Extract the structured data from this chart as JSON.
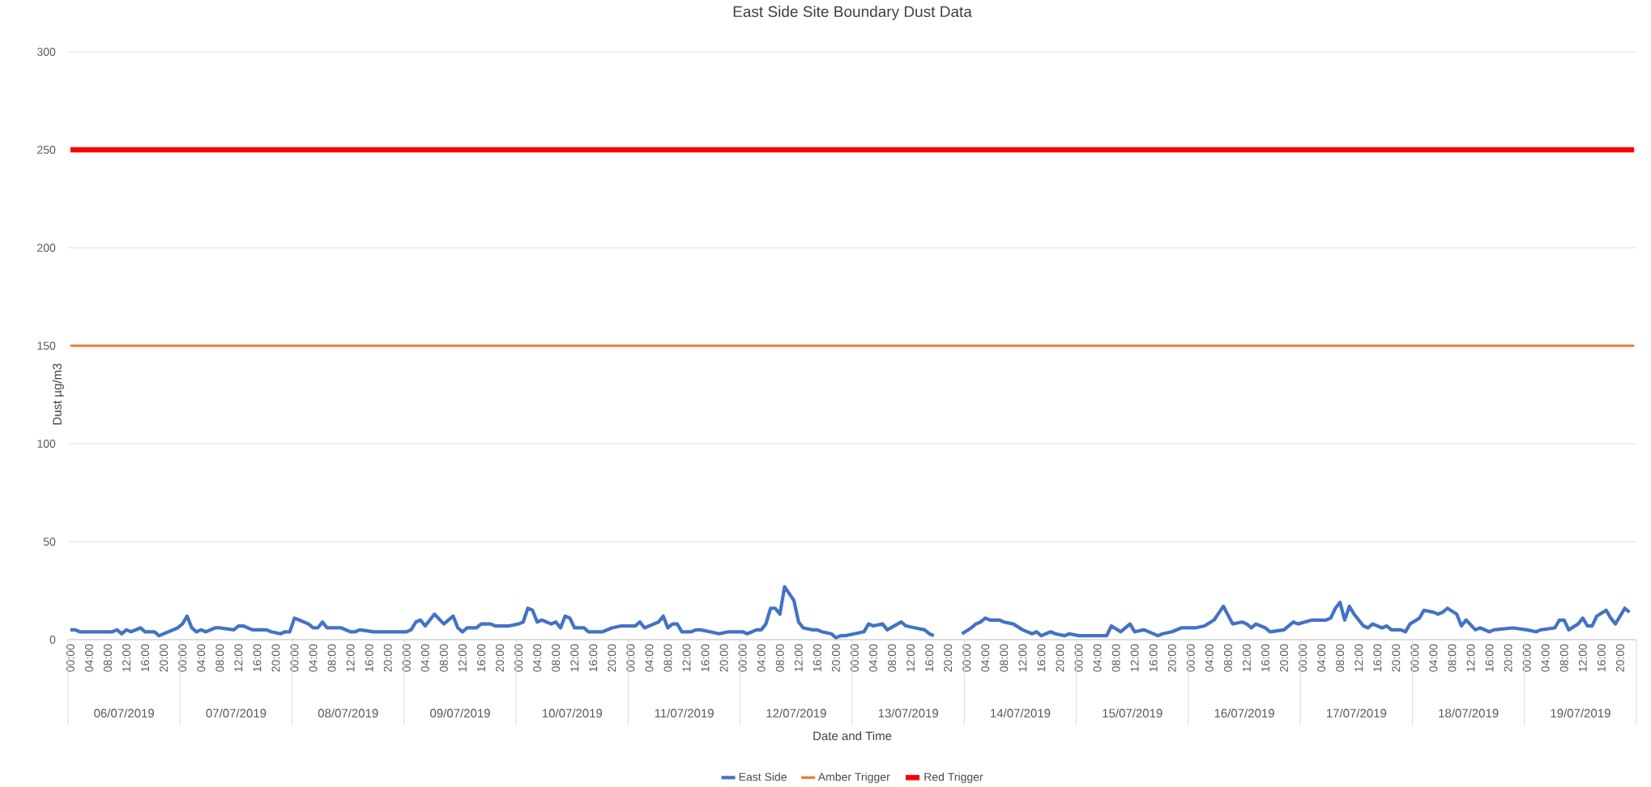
{
  "chart_data": {
    "type": "line",
    "title": "East Side Site Boundary Dust Data",
    "xlabel": "Date and Time",
    "ylabel": "Dust µg/m3",
    "xlim": [
      "2019-07-05T23:30",
      "2019-07-19T23:30"
    ],
    "ylim": [
      0,
      300
    ],
    "yticks": [
      0,
      50,
      100,
      150,
      200,
      250,
      300
    ],
    "xticks": [
      {
        "value": "2019-07-06T00:00",
        "label": "00:00"
      },
      {
        "value": "2019-07-06T04:00",
        "label": "04:00"
      },
      {
        "value": "2019-07-06T08:00",
        "label": "08:00"
      },
      {
        "value": "2019-07-06T12:00",
        "label": "12:00"
      },
      {
        "value": "2019-07-06T16:00",
        "label": "16:00"
      },
      {
        "value": "2019-07-06T20:00",
        "label": "20:00"
      },
      {
        "value": "2019-07-07T00:00",
        "label": "00:00"
      },
      {
        "value": "2019-07-07T04:00",
        "label": "04:00"
      },
      {
        "value": "2019-07-07T08:00",
        "label": "08:00"
      },
      {
        "value": "2019-07-07T12:00",
        "label": "12:00"
      },
      {
        "value": "2019-07-07T16:00",
        "label": "16:00"
      },
      {
        "value": "2019-07-07T20:00",
        "label": "20:00"
      },
      {
        "value": "2019-07-08T00:00",
        "label": "00:00"
      },
      {
        "value": "2019-07-08T04:00",
        "label": "04:00"
      },
      {
        "value": "2019-07-08T08:00",
        "label": "08:00"
      },
      {
        "value": "2019-07-08T12:00",
        "label": "12:00"
      },
      {
        "value": "2019-07-08T16:00",
        "label": "16:00"
      },
      {
        "value": "2019-07-08T20:00",
        "label": "20:00"
      },
      {
        "value": "2019-07-09T00:00",
        "label": "00:00"
      },
      {
        "value": "2019-07-09T04:00",
        "label": "04:00"
      },
      {
        "value": "2019-07-09T08:00",
        "label": "08:00"
      },
      {
        "value": "2019-07-09T12:00",
        "label": "12:00"
      },
      {
        "value": "2019-07-09T16:00",
        "label": "16:00"
      },
      {
        "value": "2019-07-09T20:00",
        "label": "20:00"
      },
      {
        "value": "2019-07-10T00:00",
        "label": "00:00"
      },
      {
        "value": "2019-07-10T04:00",
        "label": "04:00"
      },
      {
        "value": "2019-07-10T08:00",
        "label": "08:00"
      },
      {
        "value": "2019-07-10T12:00",
        "label": "12:00"
      },
      {
        "value": "2019-07-10T16:00",
        "label": "16:00"
      },
      {
        "value": "2019-07-10T20:00",
        "label": "20:00"
      },
      {
        "value": "2019-07-11T00:00",
        "label": "00:00"
      },
      {
        "value": "2019-07-11T04:00",
        "label": "04:00"
      },
      {
        "value": "2019-07-11T08:00",
        "label": "08:00"
      },
      {
        "value": "2019-07-11T12:00",
        "label": "12:00"
      },
      {
        "value": "2019-07-11T16:00",
        "label": "16:00"
      },
      {
        "value": "2019-07-11T20:00",
        "label": "20:00"
      },
      {
        "value": "2019-07-12T00:00",
        "label": "00:00"
      },
      {
        "value": "2019-07-12T04:00",
        "label": "04:00"
      },
      {
        "value": "2019-07-12T08:00",
        "label": "08:00"
      },
      {
        "value": "2019-07-12T12:00",
        "label": "12:00"
      },
      {
        "value": "2019-07-12T16:00",
        "label": "16:00"
      },
      {
        "value": "2019-07-12T20:00",
        "label": "20:00"
      },
      {
        "value": "2019-07-13T00:00",
        "label": "00:00"
      },
      {
        "value": "2019-07-13T04:00",
        "label": "04:00"
      },
      {
        "value": "2019-07-13T08:00",
        "label": "08:00"
      },
      {
        "value": "2019-07-13T12:00",
        "label": "12:00"
      },
      {
        "value": "2019-07-13T16:00",
        "label": "16:00"
      },
      {
        "value": "2019-07-13T20:00",
        "label": "20:00"
      },
      {
        "value": "2019-07-14T00:00",
        "label": "00:00"
      },
      {
        "value": "2019-07-14T04:00",
        "label": "04:00"
      },
      {
        "value": "2019-07-14T08:00",
        "label": "08:00"
      },
      {
        "value": "2019-07-14T12:00",
        "label": "12:00"
      },
      {
        "value": "2019-07-14T16:00",
        "label": "16:00"
      },
      {
        "value": "2019-07-14T20:00",
        "label": "20:00"
      },
      {
        "value": "2019-07-15T00:00",
        "label": "00:00"
      },
      {
        "value": "2019-07-15T04:00",
        "label": "04:00"
      },
      {
        "value": "2019-07-15T08:00",
        "label": "08:00"
      },
      {
        "value": "2019-07-15T12:00",
        "label": "12:00"
      },
      {
        "value": "2019-07-15T16:00",
        "label": "16:00"
      },
      {
        "value": "2019-07-15T20:00",
        "label": "20:00"
      },
      {
        "value": "2019-07-16T00:00",
        "label": "00:00"
      },
      {
        "value": "2019-07-16T04:00",
        "label": "04:00"
      },
      {
        "value": "2019-07-16T08:00",
        "label": "08:00"
      },
      {
        "value": "2019-07-16T12:00",
        "label": "12:00"
      },
      {
        "value": "2019-07-16T16:00",
        "label": "16:00"
      },
      {
        "value": "2019-07-16T20:00",
        "label": "20:00"
      },
      {
        "value": "2019-07-17T00:00",
        "label": "00:00"
      },
      {
        "value": "2019-07-17T04:00",
        "label": "04:00"
      },
      {
        "value": "2019-07-17T08:00",
        "label": "08:00"
      },
      {
        "value": "2019-07-17T12:00",
        "label": "12:00"
      },
      {
        "value": "2019-07-17T16:00",
        "label": "16:00"
      },
      {
        "value": "2019-07-17T20:00",
        "label": "20:00"
      },
      {
        "value": "2019-07-18T00:00",
        "label": "00:00"
      },
      {
        "value": "2019-07-18T04:00",
        "label": "04:00"
      },
      {
        "value": "2019-07-18T08:00",
        "label": "08:00"
      },
      {
        "value": "2019-07-18T12:00",
        "label": "12:00"
      },
      {
        "value": "2019-07-18T16:00",
        "label": "16:00"
      },
      {
        "value": "2019-07-18T20:00",
        "label": "20:00"
      },
      {
        "value": "2019-07-19T00:00",
        "label": "00:00"
      },
      {
        "value": "2019-07-19T04:00",
        "label": "04:00"
      },
      {
        "value": "2019-07-19T08:00",
        "label": "08:00"
      },
      {
        "value": "2019-07-19T12:00",
        "label": "12:00"
      },
      {
        "value": "2019-07-19T16:00",
        "label": "16:00"
      },
      {
        "value": "2019-07-19T20:00",
        "label": "20:00"
      }
    ],
    "annotations": [
      "06/07/2019",
      "07/07/2019",
      "08/07/2019",
      "09/07/2019",
      "10/07/2019",
      "11/07/2019",
      "12/07/2019",
      "13/07/2019",
      "14/07/2019",
      "15/07/2019",
      "16/07/2019",
      "17/07/2019",
      "18/07/2019",
      "19/07/2019"
    ],
    "grid": "y",
    "legend": "bottom",
    "marker": "none",
    "series": [
      {
        "name": "East Side",
        "color": "#4472c4",
        "x": [
          "2019-07-06T00:00",
          "2019-07-06T01:00",
          "2019-07-06T02:00",
          "2019-07-06T07:00",
          "2019-07-06T09:00",
          "2019-07-06T10:00",
          "2019-07-06T11:00",
          "2019-07-06T12:00",
          "2019-07-06T13:00",
          "2019-07-06T15:00",
          "2019-07-06T16:00",
          "2019-07-06T18:00",
          "2019-07-06T19:00",
          "2019-07-06T21:00",
          "2019-07-06T23:00",
          "2019-07-07T00:00",
          "2019-07-07T01:00",
          "2019-07-07T02:00",
          "2019-07-07T03:00",
          "2019-07-07T04:00",
          "2019-07-07T05:00",
          "2019-07-07T07:00",
          "2019-07-07T08:00",
          "2019-07-07T11:00",
          "2019-07-07T12:00",
          "2019-07-07T13:00",
          "2019-07-07T15:00",
          "2019-07-07T18:00",
          "2019-07-07T19:00",
          "2019-07-07T21:00",
          "2019-07-07T22:00",
          "2019-07-07T23:00",
          "2019-07-08T00:00",
          "2019-07-08T01:00",
          "2019-07-08T03:00",
          "2019-07-08T04:00",
          "2019-07-08T05:00",
          "2019-07-08T06:00",
          "2019-07-08T07:00",
          "2019-07-08T10:00",
          "2019-07-08T12:00",
          "2019-07-08T13:00",
          "2019-07-08T14:00",
          "2019-07-08T17:00",
          "2019-07-08T23:00",
          "2019-07-09T00:00",
          "2019-07-09T01:00",
          "2019-07-09T02:00",
          "2019-07-09T03:00",
          "2019-07-09T04:00",
          "2019-07-09T06:00",
          "2019-07-09T08:00",
          "2019-07-09T10:00",
          "2019-07-09T11:00",
          "2019-07-09T12:00",
          "2019-07-09T13:00",
          "2019-07-09T15:00",
          "2019-07-09T16:00",
          "2019-07-09T18:00",
          "2019-07-09T19:00",
          "2019-07-09T22:00",
          "2019-07-10T00:00",
          "2019-07-10T01:00",
          "2019-07-10T02:00",
          "2019-07-10T03:00",
          "2019-07-10T04:00",
          "2019-07-10T05:00",
          "2019-07-10T07:00",
          "2019-07-10T08:00",
          "2019-07-10T09:00",
          "2019-07-10T10:00",
          "2019-07-10T11:00",
          "2019-07-10T12:00",
          "2019-07-10T14:00",
          "2019-07-10T15:00",
          "2019-07-10T18:00",
          "2019-07-10T20:00",
          "2019-07-10T22:00",
          "2019-07-11T01:00",
          "2019-07-11T02:00",
          "2019-07-11T03:00",
          "2019-07-11T05:00",
          "2019-07-11T06:00",
          "2019-07-11T07:00",
          "2019-07-11T08:00",
          "2019-07-11T09:00",
          "2019-07-11T10:00",
          "2019-07-11T11:00",
          "2019-07-11T13:00",
          "2019-07-11T14:00",
          "2019-07-11T15:00",
          "2019-07-11T17:00",
          "2019-07-11T19:00",
          "2019-07-11T21:00",
          "2019-07-11T23:00",
          "2019-07-12T00:00",
          "2019-07-12T01:00",
          "2019-07-12T03:00",
          "2019-07-12T04:00",
          "2019-07-12T05:00",
          "2019-07-12T06:00",
          "2019-07-12T07:00",
          "2019-07-12T08:00",
          "2019-07-12T09:00",
          "2019-07-12T11:00",
          "2019-07-12T12:00",
          "2019-07-12T13:00",
          "2019-07-12T15:00",
          "2019-07-12T16:00",
          "2019-07-12T17:00",
          "2019-07-12T19:00",
          "2019-07-12T20:00",
          "2019-07-12T21:00",
          "2019-07-12T22:00",
          "2019-07-13T00:00",
          "2019-07-13T02:00",
          "2019-07-13T03:00",
          "2019-07-13T04:00",
          "2019-07-13T06:00",
          "2019-07-13T07:00",
          "2019-07-13T10:00",
          "2019-07-13T11:00",
          "2019-07-13T13:00",
          "2019-07-13T15:00",
          "2019-07-13T16:00",
          "2019-07-13T17:00",
          "2019-07-13T20:00",
          "2019-07-13T23:00",
          "2019-07-14T01:00",
          "2019-07-14T02:00",
          "2019-07-14T03:00",
          "2019-07-14T04:00",
          "2019-07-14T05:00",
          "2019-07-14T07:00",
          "2019-07-14T08:00",
          "2019-07-14T10:00",
          "2019-07-14T12:00",
          "2019-07-14T14:00",
          "2019-07-14T15:00",
          "2019-07-14T16:00",
          "2019-07-14T18:00",
          "2019-07-14T19:00",
          "2019-07-14T21:00",
          "2019-07-14T22:00",
          "2019-07-15T00:00",
          "2019-07-15T02:00",
          "2019-07-15T06:00",
          "2019-07-15T07:00",
          "2019-07-15T09:00",
          "2019-07-15T11:00",
          "2019-07-15T12:00",
          "2019-07-15T14:00",
          "2019-07-15T17:00",
          "2019-07-15T18:00",
          "2019-07-15T20:00",
          "2019-07-15T22:00",
          "2019-07-16T01:00",
          "2019-07-16T03:00",
          "2019-07-16T05:00",
          "2019-07-16T07:00",
          "2019-07-16T09:00",
          "2019-07-16T11:00",
          "2019-07-16T12:00",
          "2019-07-16T13:00",
          "2019-07-16T14:00",
          "2019-07-16T16:00",
          "2019-07-16T17:00",
          "2019-07-16T20:00",
          "2019-07-16T22:00",
          "2019-07-16T23:00",
          "2019-07-17T02:00",
          "2019-07-17T05:00",
          "2019-07-17T06:00",
          "2019-07-17T07:00",
          "2019-07-17T08:00",
          "2019-07-17T09:00",
          "2019-07-17T10:00",
          "2019-07-17T11:00",
          "2019-07-17T13:00",
          "2019-07-17T14:00",
          "2019-07-17T15:00",
          "2019-07-17T17:00",
          "2019-07-17T18:00",
          "2019-07-17T19:00",
          "2019-07-17T21:00",
          "2019-07-17T22:00",
          "2019-07-17T23:00",
          "2019-07-18T01:00",
          "2019-07-18T02:00",
          "2019-07-18T04:00",
          "2019-07-18T05:00",
          "2019-07-18T06:00",
          "2019-07-18T07:00",
          "2019-07-18T09:00",
          "2019-07-18T10:00",
          "2019-07-18T11:00",
          "2019-07-18T13:00",
          "2019-07-18T14:00",
          "2019-07-18T16:00",
          "2019-07-18T17:00",
          "2019-07-18T21:00",
          "2019-07-19T00:00",
          "2019-07-19T02:00",
          "2019-07-19T03:00",
          "2019-07-19T06:00",
          "2019-07-19T07:00",
          "2019-07-19T08:00",
          "2019-07-19T09:00",
          "2019-07-19T11:00",
          "2019-07-19T12:00",
          "2019-07-19T13:00",
          "2019-07-19T14:00",
          "2019-07-19T15:00",
          "2019-07-19T17:00",
          "2019-07-19T18:00",
          "2019-07-19T19:00",
          "2019-07-19T21:00",
          "2019-07-19T22:00"
        ],
        "values": [
          5,
          5,
          4,
          4,
          4,
          5,
          3,
          5,
          4,
          6,
          4,
          4,
          2,
          4,
          6,
          8,
          12,
          6,
          4,
          5,
          4,
          6,
          6,
          5,
          7,
          7,
          5,
          5,
          4,
          3,
          4,
          4,
          11,
          10,
          8,
          6,
          6,
          9,
          6,
          6,
          4,
          4,
          5,
          4,
          4,
          4,
          5,
          9,
          10,
          7,
          13,
          8,
          12,
          6,
          4,
          6,
          6,
          8,
          8,
          7,
          7,
          8,
          9,
          16,
          15,
          9,
          10,
          8,
          9,
          6,
          12,
          11,
          6,
          6,
          4,
          4,
          6,
          7,
          7,
          9,
          6,
          8,
          9,
          12,
          6,
          8,
          8,
          4,
          4,
          5,
          5,
          4,
          3,
          4,
          4,
          4,
          3,
          5,
          5,
          8,
          16,
          16,
          13,
          27,
          20,
          9,
          6,
          5,
          5,
          4,
          3,
          1,
          2,
          2,
          3,
          4,
          8,
          7,
          8,
          5,
          9,
          7,
          6,
          5,
          3,
          2,
          null,
          3,
          6,
          8,
          9,
          11,
          10,
          10,
          9,
          8,
          5,
          3,
          4,
          2,
          4,
          3,
          2,
          3,
          2,
          2,
          2,
          7,
          4,
          8,
          4,
          5,
          2,
          3,
          4,
          6,
          6,
          7,
          10,
          17,
          8,
          9,
          8,
          6,
          8,
          6,
          4,
          5,
          9,
          8,
          10,
          10,
          11,
          16,
          19,
          10,
          17,
          13,
          7,
          6,
          8,
          6,
          7,
          5,
          5,
          4,
          8,
          11,
          15,
          14,
          13,
          14,
          16,
          13,
          7,
          10,
          5,
          6,
          4,
          5,
          6,
          5,
          4,
          5,
          6,
          10,
          10,
          5,
          8,
          11,
          7,
          7,
          12,
          15,
          11,
          8,
          16,
          14
        ]
      },
      {
        "name": "Amber Trigger",
        "color": "#ed7d31",
        "x": [
          "2019-07-06T00:00",
          "2019-07-19T23:00"
        ],
        "values": [
          150,
          150
        ]
      },
      {
        "name": "Red Trigger",
        "color": "#ff0000",
        "x": [
          "2019-07-06T00:00",
          "2019-07-19T23:00"
        ],
        "values": [
          250,
          250
        ]
      }
    ]
  }
}
